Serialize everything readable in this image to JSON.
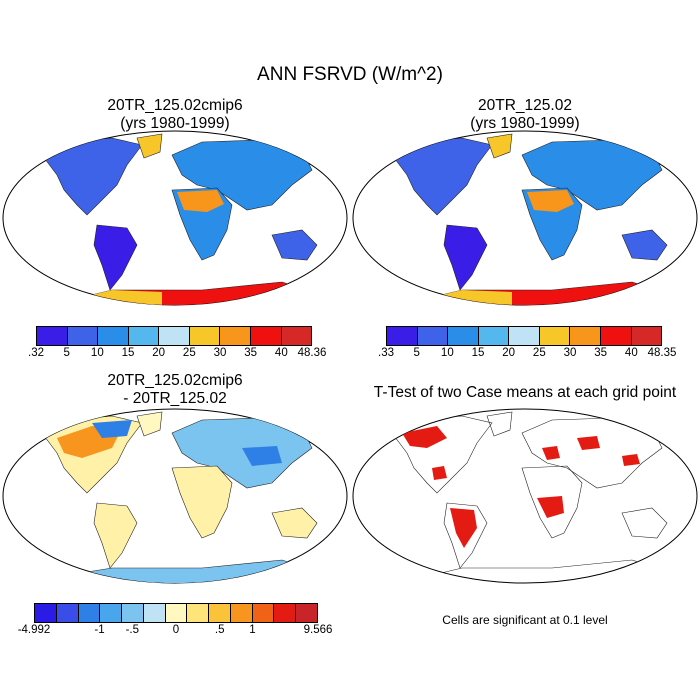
{
  "main_title": "ANN FSRVD (W/m^2)",
  "panels": [
    {
      "title_line1": "20TR_125.02cmip6",
      "title_line2": "(yrs 1980-1999)"
    },
    {
      "title_line1": "20TR_125.02",
      "title_line2": "(yrs 1980-1999)"
    },
    {
      "title_line1": "20TR_125.02cmip6",
      "title_line2": "- 20TR_125.02"
    },
    {
      "title_line1": "T-Test of two Case means at each grid point",
      "title_line2": ""
    }
  ],
  "colorbar1": {
    "colors": [
      "#3a1ee8",
      "#3f63e8",
      "#2a8de8",
      "#54b7ee",
      "#bfe3f4",
      "#f7c72a",
      "#f7961a",
      "#ef1010",
      "#d72828"
    ],
    "labels": [
      ".32",
      "5",
      "10",
      "15",
      "20",
      "25",
      "30",
      "35",
      "40",
      "48.36"
    ]
  },
  "colorbar2": {
    "colors": [
      "#3a1ee8",
      "#3f63e8",
      "#2a8de8",
      "#54b7ee",
      "#bfe3f4",
      "#f7c72a",
      "#f7961a",
      "#ef1010",
      "#d72828"
    ],
    "labels": [
      ".33",
      "5",
      "10",
      "15",
      "20",
      "25",
      "30",
      "35",
      "40",
      "48.35"
    ]
  },
  "colorbar3": {
    "colors": [
      "#2b1be6",
      "#3a4de8",
      "#2e7fe6",
      "#4aa6ec",
      "#7cc4f0",
      "#bfe3f5",
      "#fff8c0",
      "#ffe47a",
      "#fbc33a",
      "#f8951e",
      "#f06216",
      "#e41b13",
      "#c8242a"
    ],
    "labels": [
      "-4.992",
      "-1",
      "-.5",
      "0",
      ".5",
      "1",
      "9.566"
    ]
  },
  "footnote": "Cells are significant at 0.1 level",
  "map_colors": {
    "land_low": "#3f63e8",
    "land_mid": "#2a8de8",
    "desert": "#f7961a",
    "antarctica": "#ef1010",
    "diff_land": "#fff2a8",
    "diff_cool": "#7cc4f0",
    "diff_warm": "#f8951e",
    "significant": "#e41b13"
  }
}
